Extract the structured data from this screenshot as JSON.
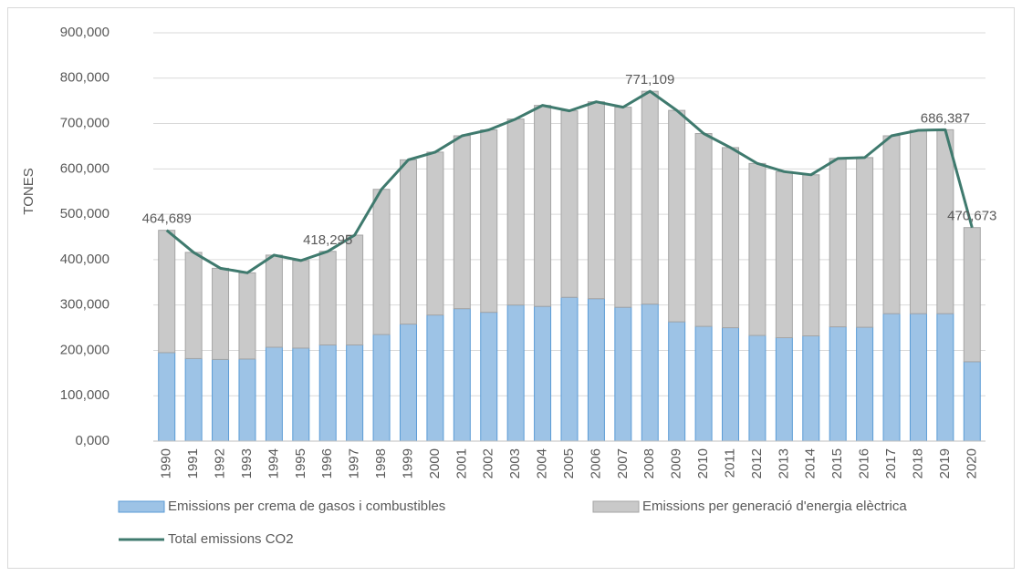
{
  "chart_data": {
    "type": "bar",
    "yaxis_title": "TONES",
    "stacked": true,
    "grid": true,
    "categories": [
      "1990",
      "1991",
      "1992",
      "1993",
      "1994",
      "1995",
      "1996",
      "1997",
      "1998",
      "1999",
      "2000",
      "2001",
      "2002",
      "2003",
      "2004",
      "2005",
      "2006",
      "2007",
      "2008",
      "2009",
      "2010",
      "2011",
      "2012",
      "2013",
      "2014",
      "2015",
      "2016",
      "2017",
      "2018",
      "2019",
      "2020"
    ],
    "series": [
      {
        "name": "Emissions per crema de gasos i combustibles",
        "color": "#9dc3e6",
        "stroke": "#5b9bd5",
        "values": [
          195000,
          182000,
          180000,
          181000,
          207000,
          205000,
          212000,
          212000,
          235000,
          258000,
          278000,
          292000,
          284000,
          300000,
          297000,
          317000,
          314000,
          295000,
          302000,
          263000,
          253000,
          250000,
          233000,
          228000,
          232000,
          252000,
          251000,
          281000,
          281000,
          281000,
          175000
        ]
      },
      {
        "name": "Emissions per generació d'energia elèctrica",
        "color": "#c9c9c9",
        "stroke": "#a5a5a5",
        "values": [
          269689,
          234000,
          201000,
          190000,
          203000,
          193000,
          206295,
          242000,
          320000,
          362000,
          359000,
          381000,
          402000,
          410000,
          443000,
          411000,
          434000,
          441000,
          469109,
          466000,
          425000,
          397000,
          379000,
          366000,
          355000,
          371000,
          374000,
          392000,
          404000,
          405387,
          295673
        ]
      },
      {
        "name": "Total emissions CO2",
        "color": "#3f7a6e",
        "type": "line",
        "values": [
          464689,
          416000,
          381000,
          371000,
          410000,
          398000,
          418295,
          454000,
          555000,
          620000,
          637000,
          673000,
          686000,
          710000,
          740000,
          728000,
          748000,
          736000,
          771109,
          729000,
          678000,
          647000,
          612000,
          594000,
          587000,
          623000,
          625000,
          673000,
          685000,
          686387,
          470673
        ],
        "value_labels": [
          "464,689",
          null,
          null,
          null,
          null,
          null,
          "418,295",
          null,
          null,
          null,
          null,
          null,
          null,
          null,
          null,
          null,
          null,
          null,
          "771,109",
          null,
          null,
          null,
          null,
          null,
          null,
          null,
          null,
          null,
          null,
          "686,387",
          "470,673"
        ]
      }
    ],
    "ylim": [
      0,
      900000
    ],
    "yticks": [
      {
        "value": 0,
        "label": "0,000"
      },
      {
        "value": 100000,
        "label": "100,000"
      },
      {
        "value": 200000,
        "label": "200,000"
      },
      {
        "value": 300000,
        "label": "300,000"
      },
      {
        "value": 400000,
        "label": "400,000"
      },
      {
        "value": 500000,
        "label": "500,000"
      },
      {
        "value": 600000,
        "label": "600,000"
      },
      {
        "value": 700000,
        "label": "700,000"
      },
      {
        "value": 800000,
        "label": "800,000"
      },
      {
        "value": 900000,
        "label": "900,000"
      }
    ]
  }
}
